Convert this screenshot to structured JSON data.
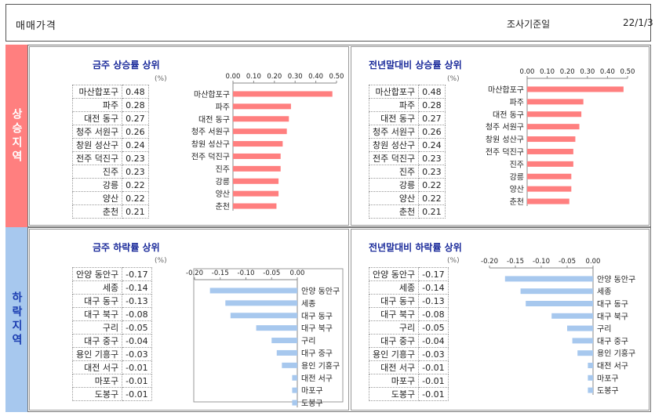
{
  "header": {
    "title": "매매가격",
    "date_label": "조사기준일",
    "date_value": "22/1/3"
  },
  "sections": {
    "up_label": "상승지역",
    "down_label": "하락지역"
  },
  "unit_label": "(%)",
  "chart_data": [
    {
      "type": "bar",
      "title": "금주 상승률 상위",
      "categories": [
        "마산합포구",
        "파주",
        "대전 동구",
        "청주 서원구",
        "창원 성산구",
        "전주 덕진구",
        "진주",
        "강릉",
        "양산",
        "춘천"
      ],
      "values": [
        0.48,
        0.28,
        0.27,
        0.26,
        0.24,
        0.23,
        0.23,
        0.22,
        0.22,
        0.21
      ],
      "display_values": [
        "0.48",
        "0.28",
        "0.27",
        "0.26",
        "0.24",
        "0.23",
        "0.23",
        "0.22",
        "0.22",
        "0.21"
      ],
      "xlim": [
        0,
        0.5
      ],
      "ticks": [
        "0.00",
        "0.10",
        "0.20",
        "0.30",
        "0.40",
        "0.50"
      ],
      "color": "#ff7f7f"
    },
    {
      "type": "bar",
      "title": "전년말대비 상승률 상위",
      "categories": [
        "마산합포구",
        "파주",
        "대전 동구",
        "청주 서원구",
        "창원 성산구",
        "전주 덕진구",
        "진주",
        "강릉",
        "양산",
        "춘천"
      ],
      "values": [
        0.48,
        0.28,
        0.27,
        0.26,
        0.24,
        0.23,
        0.23,
        0.22,
        0.22,
        0.21
      ],
      "display_values": [
        "0.48",
        "0.28",
        "0.27",
        "0.26",
        "0.24",
        "0.23",
        "0.23",
        "0.22",
        "0.22",
        "0.21"
      ],
      "xlim": [
        0,
        0.5
      ],
      "ticks": [
        "0.00",
        "0.10",
        "0.20",
        "0.30",
        "0.40",
        "0.50"
      ],
      "color": "#ff7f7f"
    },
    {
      "type": "bar",
      "title": "금주 하락률 상위",
      "categories": [
        "안양 동안구",
        "세종",
        "대구 동구",
        "대구 북구",
        "구리",
        "대구 중구",
        "용인 기흥구",
        "대전 서구",
        "마포구",
        "도봉구"
      ],
      "values": [
        -0.17,
        -0.14,
        -0.13,
        -0.08,
        -0.05,
        -0.04,
        -0.03,
        -0.01,
        -0.01,
        -0.01
      ],
      "display_values": [
        "-0.17",
        "-0.14",
        "-0.13",
        "-0.08",
        "-0.05",
        "-0.04",
        "-0.03",
        "-0.01",
        "-0.01",
        "-0.01"
      ],
      "xlim": [
        -0.2,
        0
      ],
      "ticks": [
        "-0.20",
        "-0.15",
        "-0.10",
        "-0.05",
        "0.00"
      ],
      "color": "#a7c8ee"
    },
    {
      "type": "bar",
      "title": "전년말대비 하락률 상위",
      "categories": [
        "안양 동안구",
        "세종",
        "대구 동구",
        "대구 북구",
        "구리",
        "대구 중구",
        "용인 기흥구",
        "대전 서구",
        "마포구",
        "도봉구"
      ],
      "values": [
        -0.17,
        -0.14,
        -0.13,
        -0.08,
        -0.05,
        -0.04,
        -0.03,
        -0.01,
        -0.01,
        -0.01
      ],
      "display_values": [
        "-0.17",
        "-0.14",
        "-0.13",
        "-0.08",
        "-0.05",
        "-0.04",
        "-0.03",
        "-0.01",
        "-0.01",
        "-0.01"
      ],
      "xlim": [
        -0.2,
        0
      ],
      "ticks": [
        "-0.20",
        "-0.15",
        "-0.10",
        "-0.05",
        "0.00"
      ],
      "color": "#a7c8ee"
    }
  ]
}
